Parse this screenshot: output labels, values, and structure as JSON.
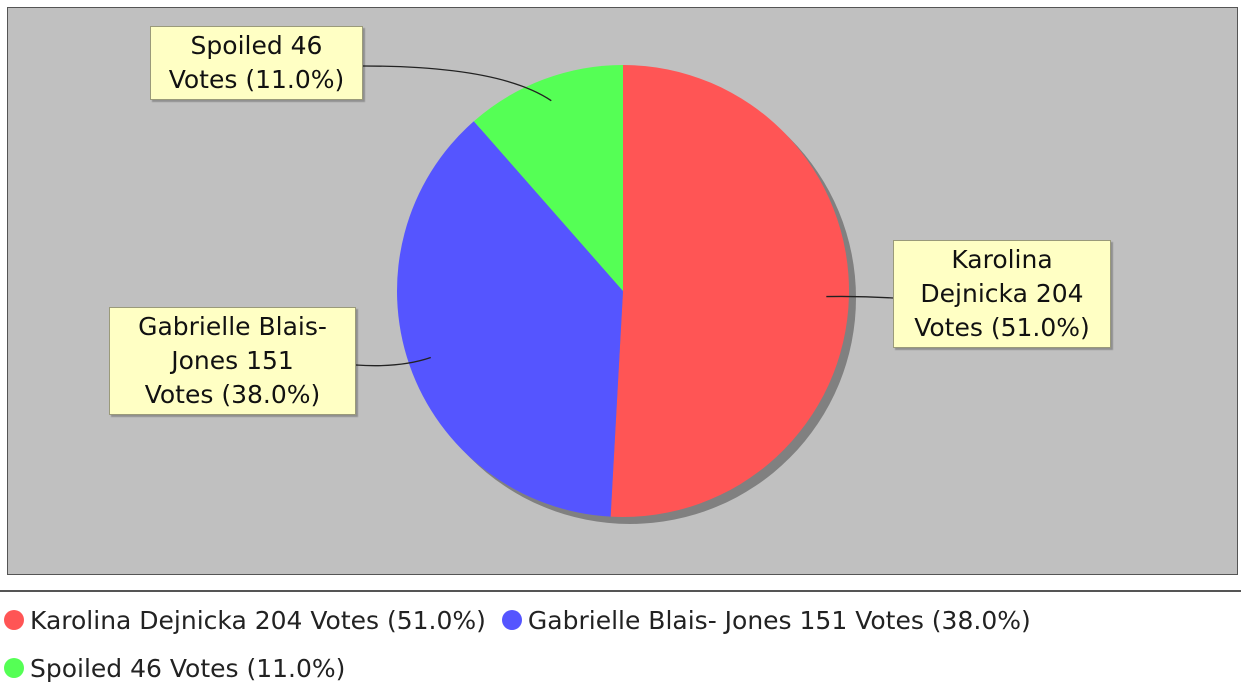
{
  "chart_data": {
    "type": "pie",
    "title": "",
    "slices": [
      {
        "name": "Karolina Dejnicka",
        "value": 204,
        "percent": 51.0,
        "color": "#ff5555",
        "label_lines": [
          "Karolina",
          "Dejnicka 204",
          "Votes (51.0%)"
        ],
        "legend": "Karolina Dejnicka 204 Votes (51.0%)"
      },
      {
        "name": "Gabrielle Blais- Jones",
        "value": 151,
        "percent": 38.0,
        "color": "#5555ff",
        "label_lines": [
          "Gabrielle Blais-",
          "Jones 151",
          "Votes (38.0%)"
        ],
        "legend": "Gabrielle Blais- Jones 151 Votes (38.0%)"
      },
      {
        "name": "Spoiled",
        "value": 46,
        "percent": 11.0,
        "color": "#55ff55",
        "label_lines": [
          "Spoiled 46",
          "Votes (11.0%)"
        ],
        "legend": "Spoiled 46 Votes (11.0%)"
      }
    ],
    "legend_placement": "bottom",
    "background": "#c0c0c0"
  }
}
